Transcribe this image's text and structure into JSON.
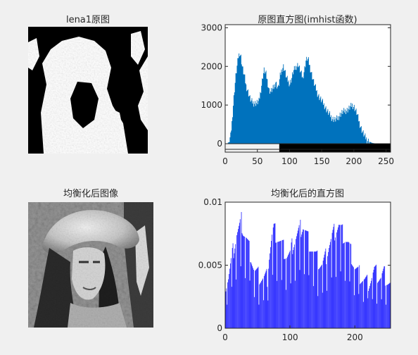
{
  "figure": {
    "background": "#f0f0f0",
    "colors": {
      "hist_fill": "#0072bd",
      "stem_line": "#0000ff",
      "axes_bg": "#ffffff",
      "axis": "#262626"
    }
  },
  "panels": {
    "original_image": {
      "title": "lena1原图"
    },
    "equalized_image": {
      "title": "均衡化后图像"
    }
  },
  "chart_data": [
    {
      "id": "original-histogram",
      "type": "area",
      "title": "原图直方图(imhist函数)",
      "xlabel": "",
      "ylabel": "",
      "xlim": [
        0,
        255
      ],
      "ylim": [
        0,
        3000
      ],
      "xticks": [
        0,
        50,
        100,
        150,
        200,
        250
      ],
      "yticks": [
        0,
        1000,
        2000,
        3000
      ],
      "grid": false,
      "colorbar": {
        "type": "grayscale",
        "range": [
          0,
          255
        ]
      },
      "envelope": [
        [
          0,
          0
        ],
        [
          3,
          10
        ],
        [
          5,
          40
        ],
        [
          8,
          200
        ],
        [
          10,
          550
        ],
        [
          12,
          1000
        ],
        [
          14,
          1400
        ],
        [
          16,
          1750
        ],
        [
          18,
          2000
        ],
        [
          20,
          2250
        ],
        [
          22,
          2350
        ],
        [
          24,
          2250
        ],
        [
          26,
          2000
        ],
        [
          28,
          1850
        ],
        [
          30,
          1700
        ],
        [
          32,
          1500
        ],
        [
          35,
          1350
        ],
        [
          38,
          1180
        ],
        [
          40,
          1100
        ],
        [
          44,
          1050
        ],
        [
          48,
          1050
        ],
        [
          52,
          1100
        ],
        [
          55,
          1400
        ],
        [
          58,
          1750
        ],
        [
          60,
          1900
        ],
        [
          63,
          1800
        ],
        [
          66,
          1550
        ],
        [
          68,
          1380
        ],
        [
          70,
          1350
        ],
        [
          75,
          1450
        ],
        [
          78,
          1600
        ],
        [
          80,
          1500
        ],
        [
          82,
          1450
        ],
        [
          85,
          1750
        ],
        [
          88,
          1950
        ],
        [
          90,
          2000
        ],
        [
          92,
          1900
        ],
        [
          95,
          1700
        ],
        [
          98,
          1600
        ],
        [
          100,
          1550
        ],
        [
          103,
          1700
        ],
        [
          105,
          1850
        ],
        [
          108,
          1950
        ],
        [
          110,
          2000
        ],
        [
          113,
          2050
        ],
        [
          116,
          1900
        ],
        [
          118,
          1800
        ],
        [
          120,
          1700
        ],
        [
          123,
          1950
        ],
        [
          125,
          2150
        ],
        [
          127,
          2200
        ],
        [
          129,
          2150
        ],
        [
          131,
          2000
        ],
        [
          134,
          1800
        ],
        [
          137,
          1600
        ],
        [
          140,
          1450
        ],
        [
          143,
          1300
        ],
        [
          146,
          1200
        ],
        [
          150,
          1100
        ],
        [
          155,
          950
        ],
        [
          158,
          850
        ],
        [
          162,
          750
        ],
        [
          166,
          650
        ],
        [
          170,
          620
        ],
        [
          174,
          650
        ],
        [
          178,
          750
        ],
        [
          182,
          820
        ],
        [
          186,
          850
        ],
        [
          190,
          880
        ],
        [
          194,
          950
        ],
        [
          197,
          1000
        ],
        [
          200,
          950
        ],
        [
          204,
          800
        ],
        [
          208,
          550
        ],
        [
          212,
          350
        ],
        [
          216,
          200
        ],
        [
          220,
          100
        ],
        [
          224,
          50
        ],
        [
          228,
          20
        ],
        [
          232,
          8
        ],
        [
          240,
          0
        ],
        [
          255,
          0
        ]
      ]
    },
    {
      "id": "equalized-histogram",
      "type": "bar",
      "title": "均衡化后的直方图",
      "xlabel": "",
      "ylabel": "",
      "xlim": [
        0,
        255
      ],
      "ylim": [
        0,
        0.01
      ],
      "xticks": [
        0,
        100,
        200
      ],
      "yticks": [
        0,
        0.005,
        0.01
      ],
      "grid": false,
      "envelope": [
        [
          0,
          0.0034
        ],
        [
          5,
          0.004
        ],
        [
          10,
          0.0055
        ],
        [
          15,
          0.0068
        ],
        [
          18,
          0.0075
        ],
        [
          22,
          0.008
        ],
        [
          25,
          0.0085
        ],
        [
          28,
          0.0078
        ],
        [
          32,
          0.0072
        ],
        [
          36,
          0.0065
        ],
        [
          40,
          0.0058
        ],
        [
          45,
          0.0045
        ],
        [
          50,
          0.0042
        ],
        [
          55,
          0.004
        ],
        [
          60,
          0.0039
        ],
        [
          65,
          0.004
        ],
        [
          68,
          0.0058
        ],
        [
          72,
          0.0073
        ],
        [
          75,
          0.0078
        ],
        [
          80,
          0.0073
        ],
        [
          85,
          0.0068
        ],
        [
          90,
          0.0063
        ],
        [
          95,
          0.0058
        ],
        [
          100,
          0.0058
        ],
        [
          105,
          0.0068
        ],
        [
          110,
          0.0073
        ],
        [
          115,
          0.0078
        ],
        [
          120,
          0.0082
        ],
        [
          125,
          0.0075
        ],
        [
          130,
          0.0068
        ],
        [
          135,
          0.0062
        ],
        [
          140,
          0.0056
        ],
        [
          145,
          0.0052
        ],
        [
          150,
          0.005
        ],
        [
          155,
          0.0056
        ],
        [
          160,
          0.0066
        ],
        [
          165,
          0.0072
        ],
        [
          170,
          0.0078
        ],
        [
          175,
          0.0082
        ],
        [
          180,
          0.0076
        ],
        [
          185,
          0.0072
        ],
        [
          190,
          0.0066
        ],
        [
          195,
          0.0058
        ],
        [
          200,
          0.0048
        ],
        [
          205,
          0.0044
        ],
        [
          210,
          0.0041
        ],
        [
          215,
          0.0038
        ],
        [
          220,
          0.0036
        ],
        [
          225,
          0.004
        ],
        [
          230,
          0.0045
        ],
        [
          235,
          0.0042
        ],
        [
          240,
          0.004
        ],
        [
          245,
          0.0043
        ],
        [
          250,
          0.0038
        ],
        [
          255,
          0.0034
        ]
      ]
    }
  ]
}
